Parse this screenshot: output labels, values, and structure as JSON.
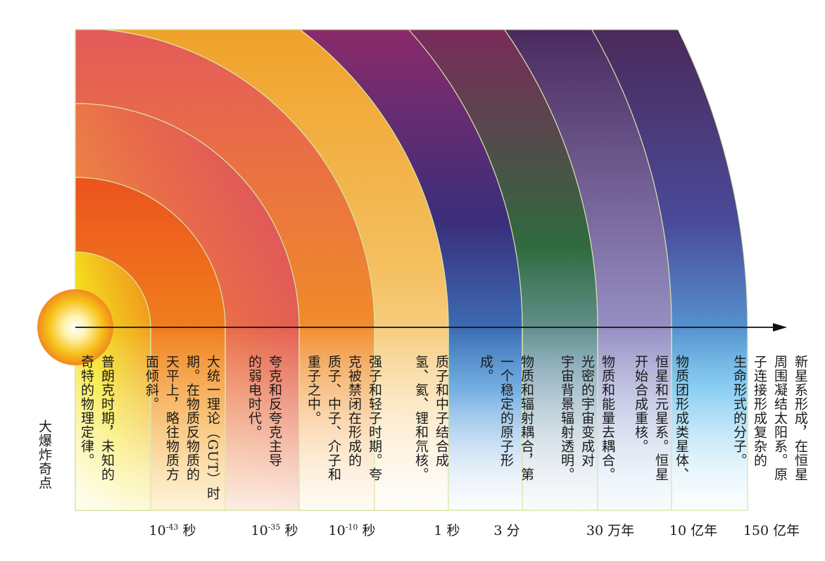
{
  "bigbang_label": "大爆炸奇点",
  "time_labels": [
    {
      "base": "10",
      "exp": "-43",
      "unit": " 秒"
    },
    {
      "base": "10",
      "exp": "-35",
      "unit": " 秒"
    },
    {
      "base": "10",
      "exp": "-10",
      "unit": " 秒"
    },
    {
      "base": "1 秒",
      "exp": "",
      "unit": ""
    },
    {
      "base": "3 分",
      "exp": "",
      "unit": ""
    },
    {
      "base": "30 万年",
      "exp": "",
      "unit": ""
    },
    {
      "base": "10 亿年",
      "exp": "",
      "unit": ""
    },
    {
      "base": "150 亿年",
      "exp": "",
      "unit": ""
    }
  ],
  "eras": [
    {
      "text": "普朗克时期，未知的\n奇特的物理定律。",
      "colors": [
        "#f4e41e",
        "#f08a1c"
      ]
    },
    {
      "text": "大统一理论（GUT）时\n期。在物质反物质的\n天平上，略往物质方\n面倾斜。",
      "colors": [
        "#f6a41a",
        "#ec5a1e"
      ]
    },
    {
      "text": "夸克和反夸克主导\n的弱电时代。",
      "colors": [
        "#f3b93a",
        "#e24b5a"
      ]
    },
    {
      "text": "强子和轻子时期。夸\n克被禁闭在形成的\n质子、中子、介子和\n重子之中。",
      "colors": [
        "#f7c65a",
        "#f06a2a"
      ]
    },
    {
      "text": "质子和中子结合成\n氢、氦、锂和氘核。",
      "colors": [
        "#f6d48a",
        "#f2a52a"
      ]
    },
    {
      "text": "物质和辐射耦合，第\n一个稳定的原子形\n成。",
      "colors": [
        "#4aa6e0",
        "#5a2a7a"
      ]
    },
    {
      "text": "物质和能量去耦合。\n光密的宇宙变成对\n宇宙背景辐射透明。",
      "colors": [
        "#3a6a4a",
        "#8a2a6a"
      ]
    },
    {
      "text": "物质团形成类星体、\n恒星和元星系。恒星\n开始合成重核。",
      "colors": [
        "#b09ad0",
        "#5a2a6a"
      ]
    },
    {
      "text": "新星系形成，在恒星\n周围凝结太阳系。原\n子连接形成复杂的\n生命形式的分子。",
      "colors": [
        "#6ac4f0",
        "#4a2a6a"
      ]
    }
  ]
}
